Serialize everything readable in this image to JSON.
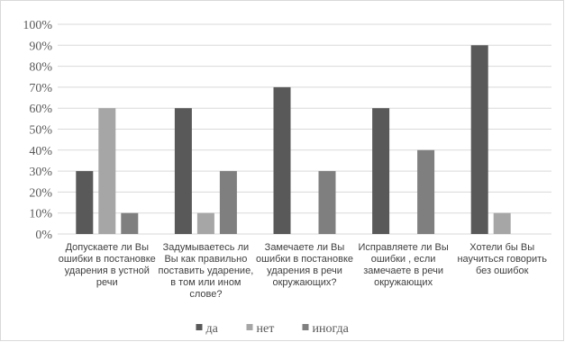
{
  "chart_data": {
    "type": "bar",
    "categories": [
      [
        "Допускаете ли Вы",
        "ошибки в постановке",
        "ударения в устной",
        "речи"
      ],
      [
        "Задумываетесь ли",
        "Вы как правильно",
        "поставить ударение,",
        "в том или ином",
        "слове?"
      ],
      [
        "Замечаете ли Вы",
        "ошибки в постановке",
        "ударения в речи",
        "окружающих?"
      ],
      [
        "Исправляете ли Вы",
        "ошибки , если",
        "замечаете в речи",
        "окружающих"
      ],
      [
        "Хотели бы Вы",
        "научиться говорить",
        "без ошибок"
      ]
    ],
    "series": [
      {
        "name": "да",
        "values": [
          0.3,
          0.6,
          0.7,
          0.6,
          0.9
        ],
        "color": "#595959"
      },
      {
        "name": "нет",
        "values": [
          0.6,
          0.1,
          0.0,
          0.0,
          0.1
        ],
        "color": "#a6a6a6"
      },
      {
        "name": "иногда",
        "values": [
          0.1,
          0.3,
          0.3,
          0.4,
          0.0
        ],
        "color": "#7f7f7f"
      }
    ],
    "y_ticks": [
      "0%",
      "10%",
      "20%",
      "30%",
      "40%",
      "50%",
      "60%",
      "70%",
      "80%",
      "90%",
      "100%"
    ],
    "ylim": [
      0,
      1
    ],
    "grid": true,
    "legend_position": "bottom",
    "gridline_color": "#d9d9d9"
  }
}
